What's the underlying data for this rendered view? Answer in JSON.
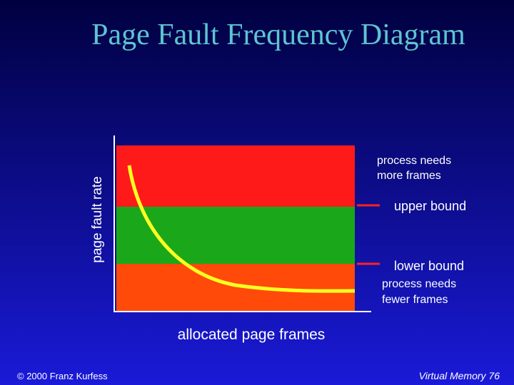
{
  "header": {
    "title": "Page Fault Frequency Diagram"
  },
  "diagram": {
    "y_axis_label": "page fault rate",
    "x_axis_label": "allocated page frames",
    "upper_region": [
      "process needs",
      "more frames"
    ],
    "upper_bound": "upper bound",
    "lower_bound": "lower bound",
    "lower_region": [
      "process needs",
      "fewer frames"
    ]
  },
  "footer": {
    "left": "© 2000 Franz Kurfess",
    "right": "Virtual Memory 76"
  }
}
